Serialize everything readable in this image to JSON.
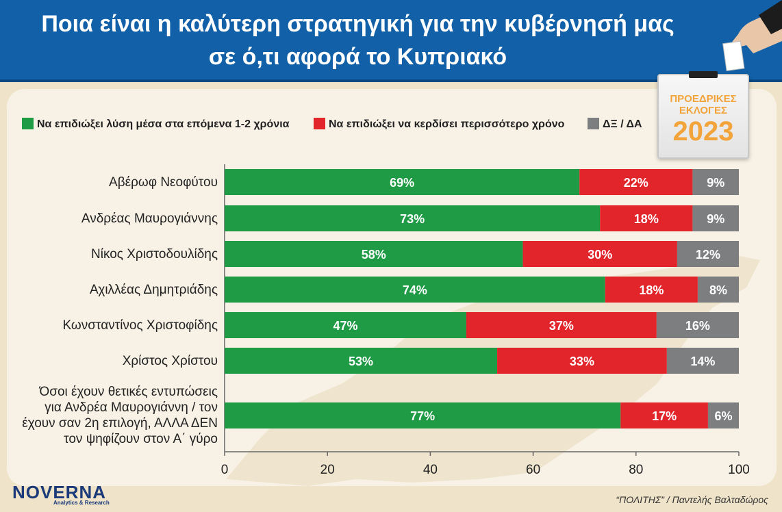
{
  "header": {
    "title_line1": "Ποια είναι η καλύτερη στρατηγική για την κυβέρνησή μας",
    "title_line2": "σε ό,τι αφορά το Κυπριακό"
  },
  "badge": {
    "line1": "ΠΡΟΕΔΡΙΚΕΣ",
    "line2": "ΕΚΛΟΓΕΣ",
    "year": "2023"
  },
  "brand": {
    "name": "NOVERNA",
    "sub": "Analytics & Research"
  },
  "credit": "“ΠΟΛΙΤΗΣ” / Παντελής Βαλταδώρος",
  "colors": {
    "green": "#1f9a45",
    "red": "#e2242b",
    "gray": "#7d7e80",
    "title_bg": "#1261a8"
  },
  "chart_data": {
    "type": "bar",
    "orientation": "horizontal",
    "stacked": true,
    "title": "Ποια είναι η καλύτερη στρατηγική για την κυβέρνησή μας σε ό,τι αφορά το Κυπριακό",
    "categories": [
      "Αβέρωφ Νεοφύτου",
      "Ανδρέας Μαυρογιάννης",
      "Νίκος Χριστοδουλίδης",
      "Αχιλλέας Δημητριάδης",
      "Κωνσταντίνος Χριστοφίδης",
      "Χρίστος Χρίστου",
      "Όσοι έχουν θετικές εντυπώσεις για Ανδρέα Μαυρογιάννη / τον έχουν σαν 2η επιλογή, ΑΛΛΑ ΔΕΝ τον ψηφίζουν στον Α΄ γύρο"
    ],
    "category_lines": [
      [
        "Αβέρωφ Νεοφύτου"
      ],
      [
        "Ανδρέας Μαυρογιάννης"
      ],
      [
        "Νίκος Χριστοδουλίδης"
      ],
      [
        "Αχιλλέας Δημητριάδης"
      ],
      [
        "Κωνσταντίνος Χριστοφίδης"
      ],
      [
        "Χρίστος Χρίστου"
      ],
      [
        "Όσοι έχουν θετικές εντυπώσεις",
        "για Ανδρέα Μαυρογιάννη / τον",
        "έχουν σαν 2η επιλογή, ΑΛΛΑ ΔΕΝ",
        "τον ψηφίζουν στον Α΄ γύρο"
      ]
    ],
    "series": [
      {
        "name": "Να επιδιώξει λύση μέσα στα επόμενα 1-2 χρόνια",
        "color": "#1f9a45",
        "values": [
          69,
          73,
          58,
          74,
          47,
          53,
          77
        ]
      },
      {
        "name": "Να επιδιώξει να κερδίσει περισσότερο χρόνο",
        "color": "#e2242b",
        "values": [
          22,
          18,
          30,
          18,
          37,
          33,
          17
        ]
      },
      {
        "name": "ΔΞ / ΔΑ",
        "color": "#7d7e80",
        "values": [
          9,
          9,
          12,
          8,
          16,
          14,
          6
        ]
      }
    ],
    "value_suffix": "%",
    "xlim": [
      0,
      100
    ],
    "xticks": [
      "0",
      "20",
      "40",
      "60",
      "80",
      "100"
    ],
    "legend_position": "top"
  }
}
